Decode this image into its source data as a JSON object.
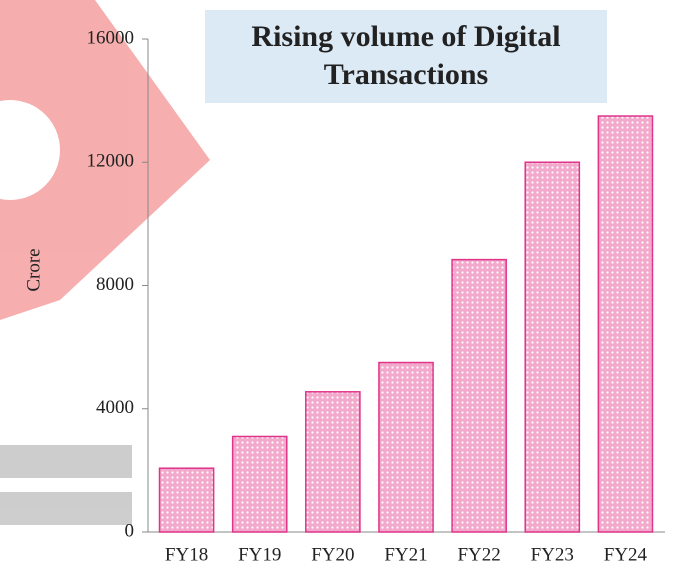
{
  "chart_data": {
    "type": "bar",
    "title": "Rising volume of Digital Transactions",
    "y_label": "Crore",
    "categories": [
      "FY18",
      "FY19",
      "FY20",
      "FY21",
      "FY22",
      "FY23",
      "FY24"
    ],
    "values": [
      2070,
      3100,
      4550,
      5500,
      8840,
      12000,
      13500
    ],
    "color": "#e0338a",
    "ylim": [
      0,
      16000
    ],
    "yticks": [
      0,
      4000,
      8000,
      12000,
      16000
    ],
    "grid": false
  }
}
